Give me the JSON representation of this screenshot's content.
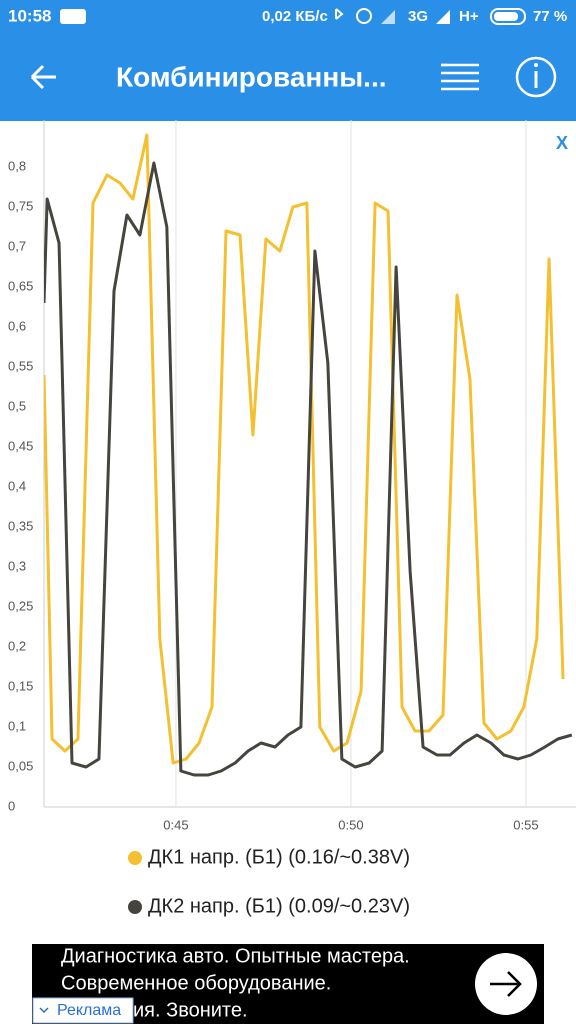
{
  "status_bar": {
    "time": "10:58",
    "speed": "0,02 КБ/с",
    "network": "3G",
    "network2": "H+",
    "battery": "77 %"
  },
  "toolbar": {
    "title": "Комбинированны..."
  },
  "close_label": "X",
  "chart_data": {
    "type": "line",
    "grid": true,
    "xlim": [
      41.23,
      56.43
    ],
    "ylim": [
      0,
      0.85
    ],
    "xticks": [
      {
        "value": 45,
        "label": "0:45"
      },
      {
        "value": 50,
        "label": "0:50"
      },
      {
        "value": 55,
        "label": "0:55"
      }
    ],
    "yticks": [
      0,
      {
        "value": 0.05,
        "label": "0,05"
      },
      {
        "value": 0.1,
        "label": "0,1"
      },
      {
        "value": 0.15,
        "label": "0,15"
      },
      {
        "value": 0.2,
        "label": "0,2"
      },
      {
        "value": 0.25,
        "label": "0,25"
      },
      {
        "value": 0.3,
        "label": "0,3"
      },
      {
        "value": 0.35,
        "label": "0,35"
      },
      {
        "value": 0.4,
        "label": "0,4"
      },
      {
        "value": 0.45,
        "label": "0,45"
      },
      {
        "value": 0.5,
        "label": "0,5"
      },
      {
        "value": 0.55,
        "label": "0,55"
      },
      {
        "value": 0.6,
        "label": "0,6"
      },
      {
        "value": 0.65,
        "label": "0,65"
      },
      {
        "value": 0.7,
        "label": "0,7"
      },
      {
        "value": 0.75,
        "label": "0,75"
      },
      {
        "value": 0.8,
        "label": "0,8"
      }
    ],
    "series": [
      {
        "name": "ДК1 напр. (Б1) (0.16/~0.38V)",
        "color": "#f4c030",
        "x": [
          41.23,
          41.46,
          41.83,
          42.2,
          42.63,
          43.03,
          43.4,
          43.77,
          44.17,
          44.54,
          44.92,
          45.29,
          45.66,
          46.03,
          46.43,
          46.83,
          47.2,
          47.57,
          47.97,
          48.34,
          48.74,
          49.11,
          49.51,
          49.89,
          50.29,
          50.69,
          51.06,
          51.46,
          51.83,
          52.23,
          52.63,
          53.03,
          53.4,
          53.8,
          54.17,
          54.57,
          54.94,
          55.31,
          55.66,
          56.06
        ],
        "values": [
          0.54,
          0.085,
          0.07,
          0.085,
          0.755,
          0.79,
          0.78,
          0.76,
          0.84,
          0.21,
          0.055,
          0.06,
          0.08,
          0.125,
          0.72,
          0.715,
          0.465,
          0.71,
          0.695,
          0.75,
          0.755,
          0.1,
          0.07,
          0.08,
          0.145,
          0.755,
          0.745,
          0.125,
          0.095,
          0.095,
          0.115,
          0.64,
          0.535,
          0.105,
          0.085,
          0.095,
          0.125,
          0.21,
          0.685,
          0.16
        ]
      },
      {
        "name": "ДК2 напр. (Б1) (0.09/~0.23V)",
        "color": "#45443e",
        "x": [
          41.23,
          41.32,
          41.66,
          42.03,
          42.43,
          42.8,
          43.23,
          43.6,
          43.97,
          44.37,
          44.74,
          45.14,
          45.52,
          45.92,
          46.29,
          46.69,
          47.06,
          47.43,
          47.83,
          48.2,
          48.57,
          48.97,
          49.34,
          49.74,
          50.12,
          50.52,
          50.89,
          51.29,
          51.69,
          52.06,
          52.46,
          52.83,
          53.23,
          53.6,
          54.0,
          54.37,
          54.77,
          55.14,
          55.54,
          55.91,
          56.31
        ],
        "values": [
          0.63,
          0.76,
          0.705,
          0.055,
          0.05,
          0.06,
          0.645,
          0.74,
          0.715,
          0.805,
          0.725,
          0.045,
          0.04,
          0.04,
          0.045,
          0.055,
          0.07,
          0.08,
          0.075,
          0.09,
          0.1,
          0.695,
          0.555,
          0.06,
          0.05,
          0.055,
          0.07,
          0.675,
          0.295,
          0.075,
          0.065,
          0.065,
          0.08,
          0.09,
          0.08,
          0.065,
          0.06,
          0.065,
          0.075,
          0.085,
          0.09
        ]
      }
    ]
  },
  "ad": {
    "lines": [
      "Диагностика авто. Опытные мастера.",
      "Современное оборудование.",
      "ия. Звоните."
    ],
    "badge": "Реклама"
  }
}
